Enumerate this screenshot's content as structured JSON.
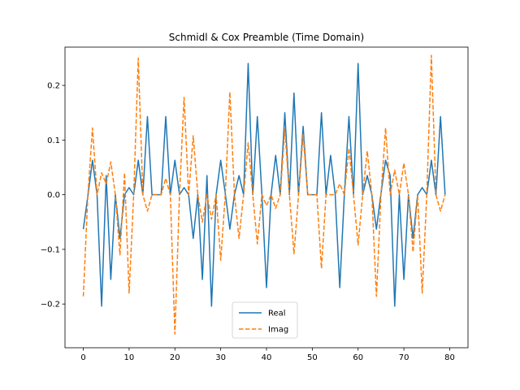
{
  "chart_data": {
    "type": "line",
    "title": "Schmidl & Cox Preamble (Time Domain)",
    "xlabel": "",
    "ylabel": "",
    "xlim": [
      -4,
      84
    ],
    "ylim": [
      -0.28,
      0.27
    ],
    "xticks": [
      0,
      10,
      20,
      30,
      40,
      50,
      60,
      70,
      80
    ],
    "yticks": [
      -0.2,
      -0.1,
      0.0,
      0.1,
      0.2
    ],
    "ytick_labels": [
      "−0.2",
      "−0.1",
      "0.0",
      "0.1",
      "0.2"
    ],
    "grid": false,
    "legend_position": "lower center",
    "x": [
      0,
      1,
      2,
      3,
      4,
      5,
      6,
      7,
      8,
      9,
      10,
      11,
      12,
      13,
      14,
      15,
      16,
      17,
      18,
      19,
      20,
      21,
      22,
      23,
      24,
      25,
      26,
      27,
      28,
      29,
      30,
      31,
      32,
      33,
      34,
      35,
      36,
      37,
      38,
      39,
      40,
      41,
      42,
      43,
      44,
      45,
      46,
      47,
      48,
      49,
      50,
      51,
      52,
      53,
      54,
      55,
      56,
      57,
      58,
      59,
      60,
      61,
      62,
      63,
      64,
      65,
      66,
      67,
      68,
      69,
      70,
      71,
      72,
      73,
      74,
      75,
      76,
      77,
      78,
      79
    ],
    "series": [
      {
        "name": "Real",
        "color": "#1f77b4",
        "style": "solid",
        "values": [
          -0.063,
          -0.002,
          0.063,
          0.0,
          -0.204,
          0.035,
          -0.155,
          0.0,
          -0.08,
          0.0,
          0.013,
          0.0,
          0.063,
          0.0,
          0.143,
          0.0,
          0.0,
          0.0,
          0.143,
          0.0,
          0.063,
          0.0,
          0.013,
          0.0,
          -0.08,
          0.0,
          -0.155,
          0.035,
          -0.204,
          0.0,
          0.063,
          0.002,
          -0.063,
          0.0,
          0.035,
          0.0,
          0.24,
          0.0,
          0.143,
          0.0,
          -0.17,
          0.0,
          0.072,
          0.0,
          0.15,
          0.0,
          0.186,
          0.0,
          0.125,
          0.0,
          0.0,
          0.0,
          0.15,
          0.0,
          0.072,
          0.0,
          -0.17,
          0.0,
          0.143,
          0.0,
          0.24,
          0.0,
          0.035,
          0.0,
          -0.063,
          0.002,
          0.063,
          0.035,
          -0.204,
          0.0,
          -0.155,
          0.0,
          -0.08,
          0.0,
          0.013,
          0.0,
          0.063,
          0.0,
          0.143,
          0.0
        ]
      },
      {
        "name": "Imag",
        "color": "#ff7f0e",
        "style": "dashed",
        "values": [
          -0.186,
          0.0,
          0.122,
          0.0,
          0.04,
          0.02,
          0.06,
          0.0,
          -0.11,
          0.04,
          -0.18,
          0.0,
          0.25,
          0.0,
          -0.03,
          0.0,
          0.0,
          0.0,
          0.03,
          0.0,
          -0.255,
          0.0,
          0.178,
          0.0,
          0.108,
          0.0,
          -0.05,
          0.0,
          -0.045,
          0.0,
          -0.12,
          0.0,
          0.188,
          0.0,
          -0.08,
          0.0,
          0.095,
          0.0,
          -0.09,
          0.0,
          -0.02,
          0.0,
          -0.025,
          0.0,
          0.12,
          0.0,
          -0.108,
          0.0,
          0.11,
          0.0,
          0.0,
          0.0,
          -0.135,
          0.0,
          0.0,
          0.0,
          0.02,
          0.0,
          0.085,
          0.0,
          -0.092,
          0.0,
          0.08,
          0.0,
          -0.186,
          0.0,
          0.122,
          0.0,
          0.045,
          0.0,
          0.058,
          0.0,
          -0.105,
          0.0,
          -0.18,
          0.0,
          0.255,
          0.0,
          -0.03,
          0.0
        ]
      }
    ]
  }
}
